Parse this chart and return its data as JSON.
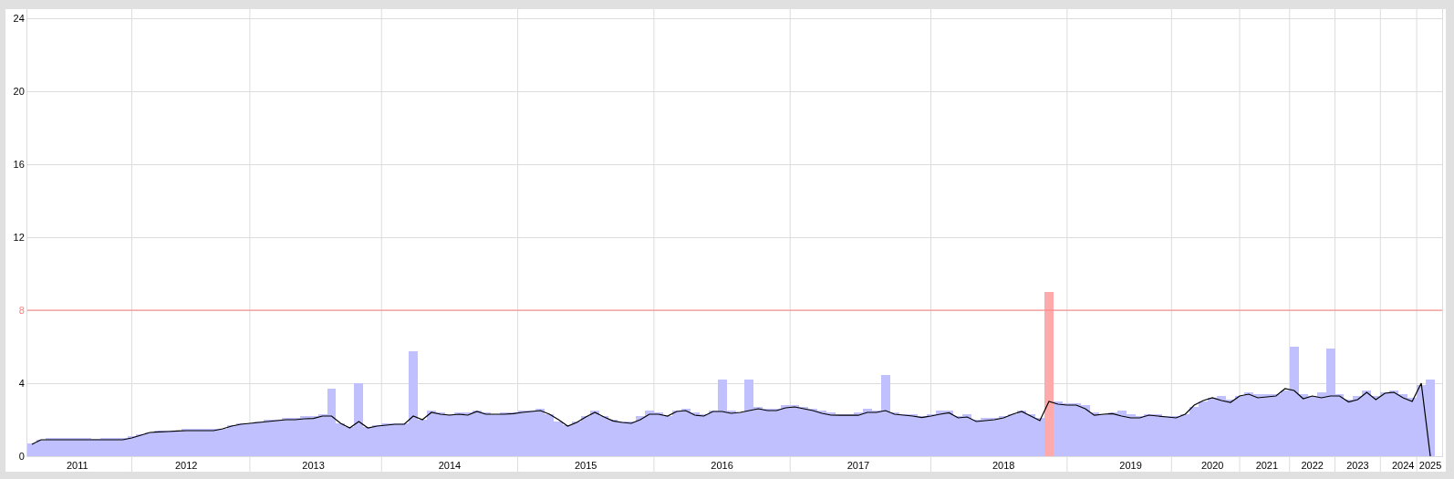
{
  "chart_data": {
    "type": "bar",
    "ylim": [
      0,
      24.5
    ],
    "yticks": [
      0,
      4,
      8,
      12,
      16,
      20,
      24
    ],
    "categories": [
      null,
      null,
      null,
      null,
      null,
      "2011",
      null,
      null,
      null,
      null,
      null,
      null,
      null,
      null,
      null,
      null,
      null,
      "2012",
      null,
      null,
      null,
      null,
      null,
      null,
      null,
      null,
      null,
      null,
      null,
      null,
      null,
      "2013",
      null,
      null,
      null,
      null,
      null,
      null,
      null,
      null,
      null,
      null,
      null,
      null,
      null,
      null,
      "2014",
      null,
      null,
      null,
      null,
      null,
      null,
      null,
      null,
      null,
      null,
      null,
      null,
      null,
      null,
      "2015",
      null,
      null,
      null,
      null,
      null,
      null,
      null,
      null,
      null,
      null,
      null,
      null,
      null,
      null,
      "2016",
      null,
      null,
      null,
      null,
      null,
      null,
      null,
      null,
      null,
      null,
      null,
      null,
      null,
      null,
      "2017",
      null,
      null,
      null,
      null,
      null,
      null,
      null,
      null,
      null,
      null,
      null,
      null,
      null,
      null,
      null,
      "2018",
      null,
      null,
      null,
      null,
      null,
      null,
      null,
      null,
      null,
      null,
      null,
      null,
      null,
      "2019",
      null,
      null,
      null,
      null,
      null,
      null,
      null,
      null,
      "2020",
      null,
      null,
      null,
      null,
      null,
      "2021",
      null,
      null,
      null,
      null,
      "2022",
      null,
      null,
      null,
      null,
      "2023",
      null,
      null,
      null,
      null,
      "2024",
      null,
      null,
      "2025"
    ],
    "grid": true,
    "legend": false,
    "ref_lines": [
      {
        "axis": "y",
        "value": 8,
        "color": "#ff8080"
      }
    ],
    "series": [
      {
        "color": "#c0c0ff",
        "values": [
          0.7,
          0.9,
          1.0,
          1.0,
          1.0,
          1.0,
          1.0,
          0.95,
          1.0,
          1.0,
          1.0,
          1.1,
          1.2,
          1.3,
          1.4,
          1.4,
          1.4,
          1.5,
          1.5,
          1.5,
          1.5,
          1.5,
          1.7,
          1.8,
          1.8,
          1.9,
          2.0,
          2.0,
          2.1,
          2.1,
          2.2,
          2.2,
          2.3,
          3.7,
          1.8,
          1.6,
          4.0,
          1.6,
          1.7,
          1.8,
          1.8,
          1.8,
          5.75,
          2.0,
          2.5,
          2.4,
          2.3,
          2.4,
          2.4,
          2.5,
          2.4,
          2.3,
          2.4,
          2.4,
          2.5,
          2.5,
          2.6,
          2.3,
          1.9,
          1.7,
          1.9,
          2.2,
          2.5,
          2.2,
          2.0,
          1.9,
          1.9,
          2.2,
          2.5,
          2.4,
          2.2,
          2.5,
          2.6,
          2.4,
          2.3,
          2.5,
          4.2,
          2.5,
          2.4,
          4.2,
          2.7,
          2.6,
          2.6,
          2.8,
          2.8,
          2.7,
          2.6,
          2.5,
          2.4,
          2.3,
          2.3,
          2.4,
          2.6,
          2.5,
          4.45,
          2.4,
          2.3,
          2.3,
          2.2,
          2.3,
          2.5,
          2.5,
          2.2,
          2.3,
          2.0,
          2.1,
          2.1,
          2.2,
          2.3,
          2.5,
          2.3,
          2.1,
          null,
          3.0,
          2.9,
          2.9,
          2.8,
          2.4,
          2.3,
          2.4,
          2.5,
          2.3,
          2.2,
          2.3,
          2.3,
          2.2,
          2.2,
          2.3,
          2.7,
          3.0,
          3.2,
          3.3,
          3.1,
          3.3,
          3.5,
          3.4,
          3.4,
          3.4,
          3.6,
          6.0,
          3.4,
          3.3,
          3.5,
          5.9,
          3.4,
          3.1,
          3.3,
          3.6,
          3.3,
          3.5,
          3.6,
          3.4,
          3.2,
          3.9,
          4.2
        ]
      },
      {
        "color": "#ffaaaa",
        "values": [
          null,
          null,
          null,
          null,
          null,
          null,
          null,
          null,
          null,
          null,
          null,
          null,
          null,
          null,
          null,
          null,
          null,
          null,
          null,
          null,
          null,
          null,
          null,
          null,
          null,
          null,
          null,
          null,
          null,
          null,
          null,
          null,
          null,
          null,
          null,
          null,
          null,
          null,
          null,
          null,
          null,
          null,
          null,
          null,
          null,
          null,
          null,
          null,
          null,
          null,
          null,
          null,
          null,
          null,
          null,
          null,
          null,
          null,
          null,
          null,
          null,
          null,
          null,
          null,
          null,
          null,
          null,
          null,
          null,
          null,
          null,
          null,
          null,
          null,
          null,
          null,
          null,
          null,
          null,
          null,
          null,
          null,
          null,
          null,
          null,
          null,
          null,
          null,
          null,
          null,
          null,
          null,
          null,
          null,
          null,
          null,
          null,
          null,
          null,
          null,
          null,
          null,
          null,
          null,
          null,
          null,
          null,
          null,
          null,
          null,
          null,
          null,
          9.0,
          null,
          null,
          null,
          null,
          null,
          null,
          null,
          null,
          null,
          null,
          null,
          null,
          null,
          null,
          null,
          null,
          null,
          null,
          null,
          null,
          null,
          null,
          null,
          null,
          null,
          null,
          null,
          null,
          null,
          null,
          null,
          null,
          null,
          null,
          null,
          null,
          null,
          null,
          null,
          null,
          null,
          null
        ]
      },
      {
        "type": "line",
        "color": "#000000",
        "values": [
          0.65,
          0.9,
          0.9,
          0.9,
          0.9,
          0.9,
          0.9,
          0.9,
          0.9,
          0.9,
          0.9,
          1.0,
          1.15,
          1.3,
          1.33,
          1.35,
          1.38,
          1.4,
          1.4,
          1.4,
          1.4,
          1.5,
          1.65,
          1.75,
          1.8,
          1.85,
          1.9,
          1.95,
          2.0,
          2.0,
          2.05,
          2.07,
          2.2,
          2.2,
          1.8,
          1.55,
          1.9,
          1.55,
          1.65,
          1.7,
          1.75,
          1.75,
          2.2,
          2.0,
          2.4,
          2.3,
          2.25,
          2.3,
          2.25,
          2.45,
          2.3,
          2.3,
          2.3,
          2.33,
          2.4,
          2.45,
          2.5,
          2.3,
          2.0,
          1.65,
          1.85,
          2.15,
          2.4,
          2.15,
          1.93,
          1.85,
          1.8,
          2.0,
          2.3,
          2.3,
          2.2,
          2.45,
          2.5,
          2.25,
          2.2,
          2.45,
          2.45,
          2.35,
          2.4,
          2.5,
          2.6,
          2.5,
          2.5,
          2.65,
          2.7,
          2.6,
          2.5,
          2.35,
          2.25,
          2.24,
          2.24,
          2.24,
          2.4,
          2.4,
          2.5,
          2.3,
          2.25,
          2.2,
          2.12,
          2.2,
          2.3,
          2.38,
          2.1,
          2.15,
          1.9,
          1.95,
          2.0,
          2.1,
          2.3,
          2.45,
          2.2,
          1.95,
          3.0,
          2.85,
          2.8,
          2.8,
          2.6,
          2.24,
          2.3,
          2.33,
          2.2,
          2.1,
          2.1,
          2.25,
          2.2,
          2.15,
          2.1,
          2.3,
          2.8,
          3.05,
          3.2,
          3.05,
          2.95,
          3.3,
          3.4,
          3.2,
          3.25,
          3.3,
          3.7,
          3.6,
          3.15,
          3.3,
          3.2,
          3.3,
          3.3,
          2.97,
          3.1,
          3.5,
          3.1,
          3.45,
          3.5,
          3.2,
          3.0,
          4.0,
          0
        ]
      }
    ]
  }
}
